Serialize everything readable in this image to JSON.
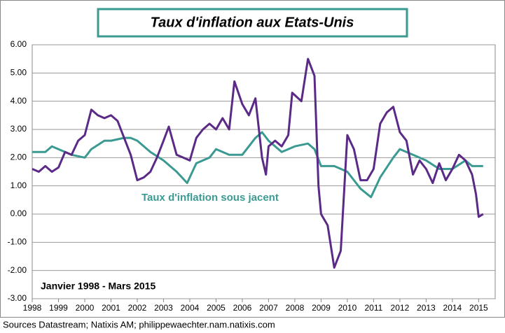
{
  "chart_data": {
    "type": "line",
    "title": "Taux d'inflation aux Etats-Unis",
    "period_note": "Janvier 1998 - Mars 2015",
    "source": "Sources Datastream; Natixis AM; philippewaechter.nam.natixis.com",
    "xlim": [
      1998,
      2015.63
    ],
    "xticks": [
      1998,
      1999,
      2000,
      2001,
      2002,
      2003,
      2004,
      2005,
      2006,
      2007,
      2008,
      2009,
      2010,
      2011,
      2012,
      2013,
      2014,
      2015
    ],
    "ylim": [
      -3,
      6
    ],
    "yticks": [
      {
        "value": -3,
        "label": "-3.00"
      },
      {
        "value": -2,
        "label": "-2.00"
      },
      {
        "value": -1,
        "label": "-1.00"
      },
      {
        "value": 0,
        "label": "0.00"
      },
      {
        "value": 1,
        "label": "1.00"
      },
      {
        "value": 2,
        "label": "2.00"
      },
      {
        "value": 3,
        "label": "3.00"
      },
      {
        "value": 4,
        "label": "4.00"
      },
      {
        "value": 5,
        "label": "5.00"
      },
      {
        "value": 6,
        "label": "6.00"
      }
    ],
    "grid": true,
    "series": [
      {
        "color": "#5b2a86",
        "x": [
          1998,
          1998.25,
          1998.5,
          1998.75,
          1999,
          1999.25,
          1999.5,
          1999.75,
          2000,
          2000.25,
          2000.5,
          2000.75,
          2001,
          2001.25,
          2001.5,
          2001.75,
          2002,
          2002.25,
          2002.5,
          2002.75,
          2003,
          2003.2,
          2003.5,
          2003.75,
          2004,
          2004.25,
          2004.5,
          2004.75,
          2005,
          2005.25,
          2005.5,
          2005.7,
          2006,
          2006.25,
          2006.5,
          2006.75,
          2006.9,
          2007,
          2007.25,
          2007.5,
          2007.75,
          2007.9,
          2008.25,
          2008.5,
          2008.75,
          2008.9,
          2009,
          2009.25,
          2009.5,
          2009.75,
          2010,
          2010.25,
          2010.5,
          2010.75,
          2011,
          2011.25,
          2011.5,
          2011.75,
          2012,
          2012.25,
          2012.5,
          2012.75,
          2013,
          2013.25,
          2013.5,
          2013.75,
          2014,
          2014.25,
          2014.5,
          2014.75,
          2014.9,
          2015,
          2015.17
        ],
        "values": [
          1.6,
          1.5,
          1.7,
          1.5,
          1.65,
          2.2,
          2.1,
          2.6,
          2.8,
          3.7,
          3.5,
          3.4,
          3.5,
          3.3,
          2.7,
          2.1,
          1.2,
          1.3,
          1.5,
          2.0,
          2.6,
          3.1,
          2.1,
          2.0,
          1.9,
          2.7,
          3.0,
          3.2,
          3.0,
          3.4,
          3.0,
          4.7,
          3.9,
          3.5,
          4.1,
          2.0,
          1.4,
          2.4,
          2.6,
          2.4,
          2.8,
          4.3,
          4.0,
          5.5,
          4.9,
          1.0,
          0.0,
          -0.4,
          -1.9,
          -1.3,
          2.8,
          2.3,
          1.2,
          1.2,
          1.6,
          3.2,
          3.6,
          3.8,
          2.9,
          2.6,
          1.4,
          1.9,
          1.6,
          1.1,
          1.8,
          1.2,
          1.6,
          2.1,
          1.9,
          1.4,
          0.7,
          -0.1,
          0.0
        ]
      },
      {
        "name": "Taux d'inflation  sous jacent",
        "color": "#3a9a92",
        "x": [
          1998,
          1998.5,
          1998.75,
          1999,
          1999.5,
          2000,
          2000.25,
          2000.75,
          2001,
          2001.5,
          2001.75,
          2002,
          2002.5,
          2003,
          2003.5,
          2003.9,
          2004.25,
          2004.75,
          2005,
          2005.5,
          2006,
          2006.5,
          2006.75,
          2007,
          2007.5,
          2008,
          2008.5,
          2008.75,
          2009,
          2009.5,
          2010,
          2010.5,
          2010.9,
          2011.25,
          2011.75,
          2012,
          2012.5,
          2013,
          2013.5,
          2014,
          2014.5,
          2014.75,
          2015.17
        ],
        "values": [
          2.2,
          2.2,
          2.4,
          2.3,
          2.1,
          2.0,
          2.3,
          2.6,
          2.6,
          2.7,
          2.7,
          2.6,
          2.2,
          1.9,
          1.5,
          1.1,
          1.8,
          2.0,
          2.3,
          2.1,
          2.1,
          2.7,
          2.9,
          2.6,
          2.2,
          2.4,
          2.5,
          2.3,
          1.7,
          1.7,
          1.5,
          0.9,
          0.6,
          1.3,
          2.0,
          2.3,
          2.1,
          1.9,
          1.6,
          1.6,
          1.9,
          1.7,
          1.7
        ]
      }
    ]
  }
}
